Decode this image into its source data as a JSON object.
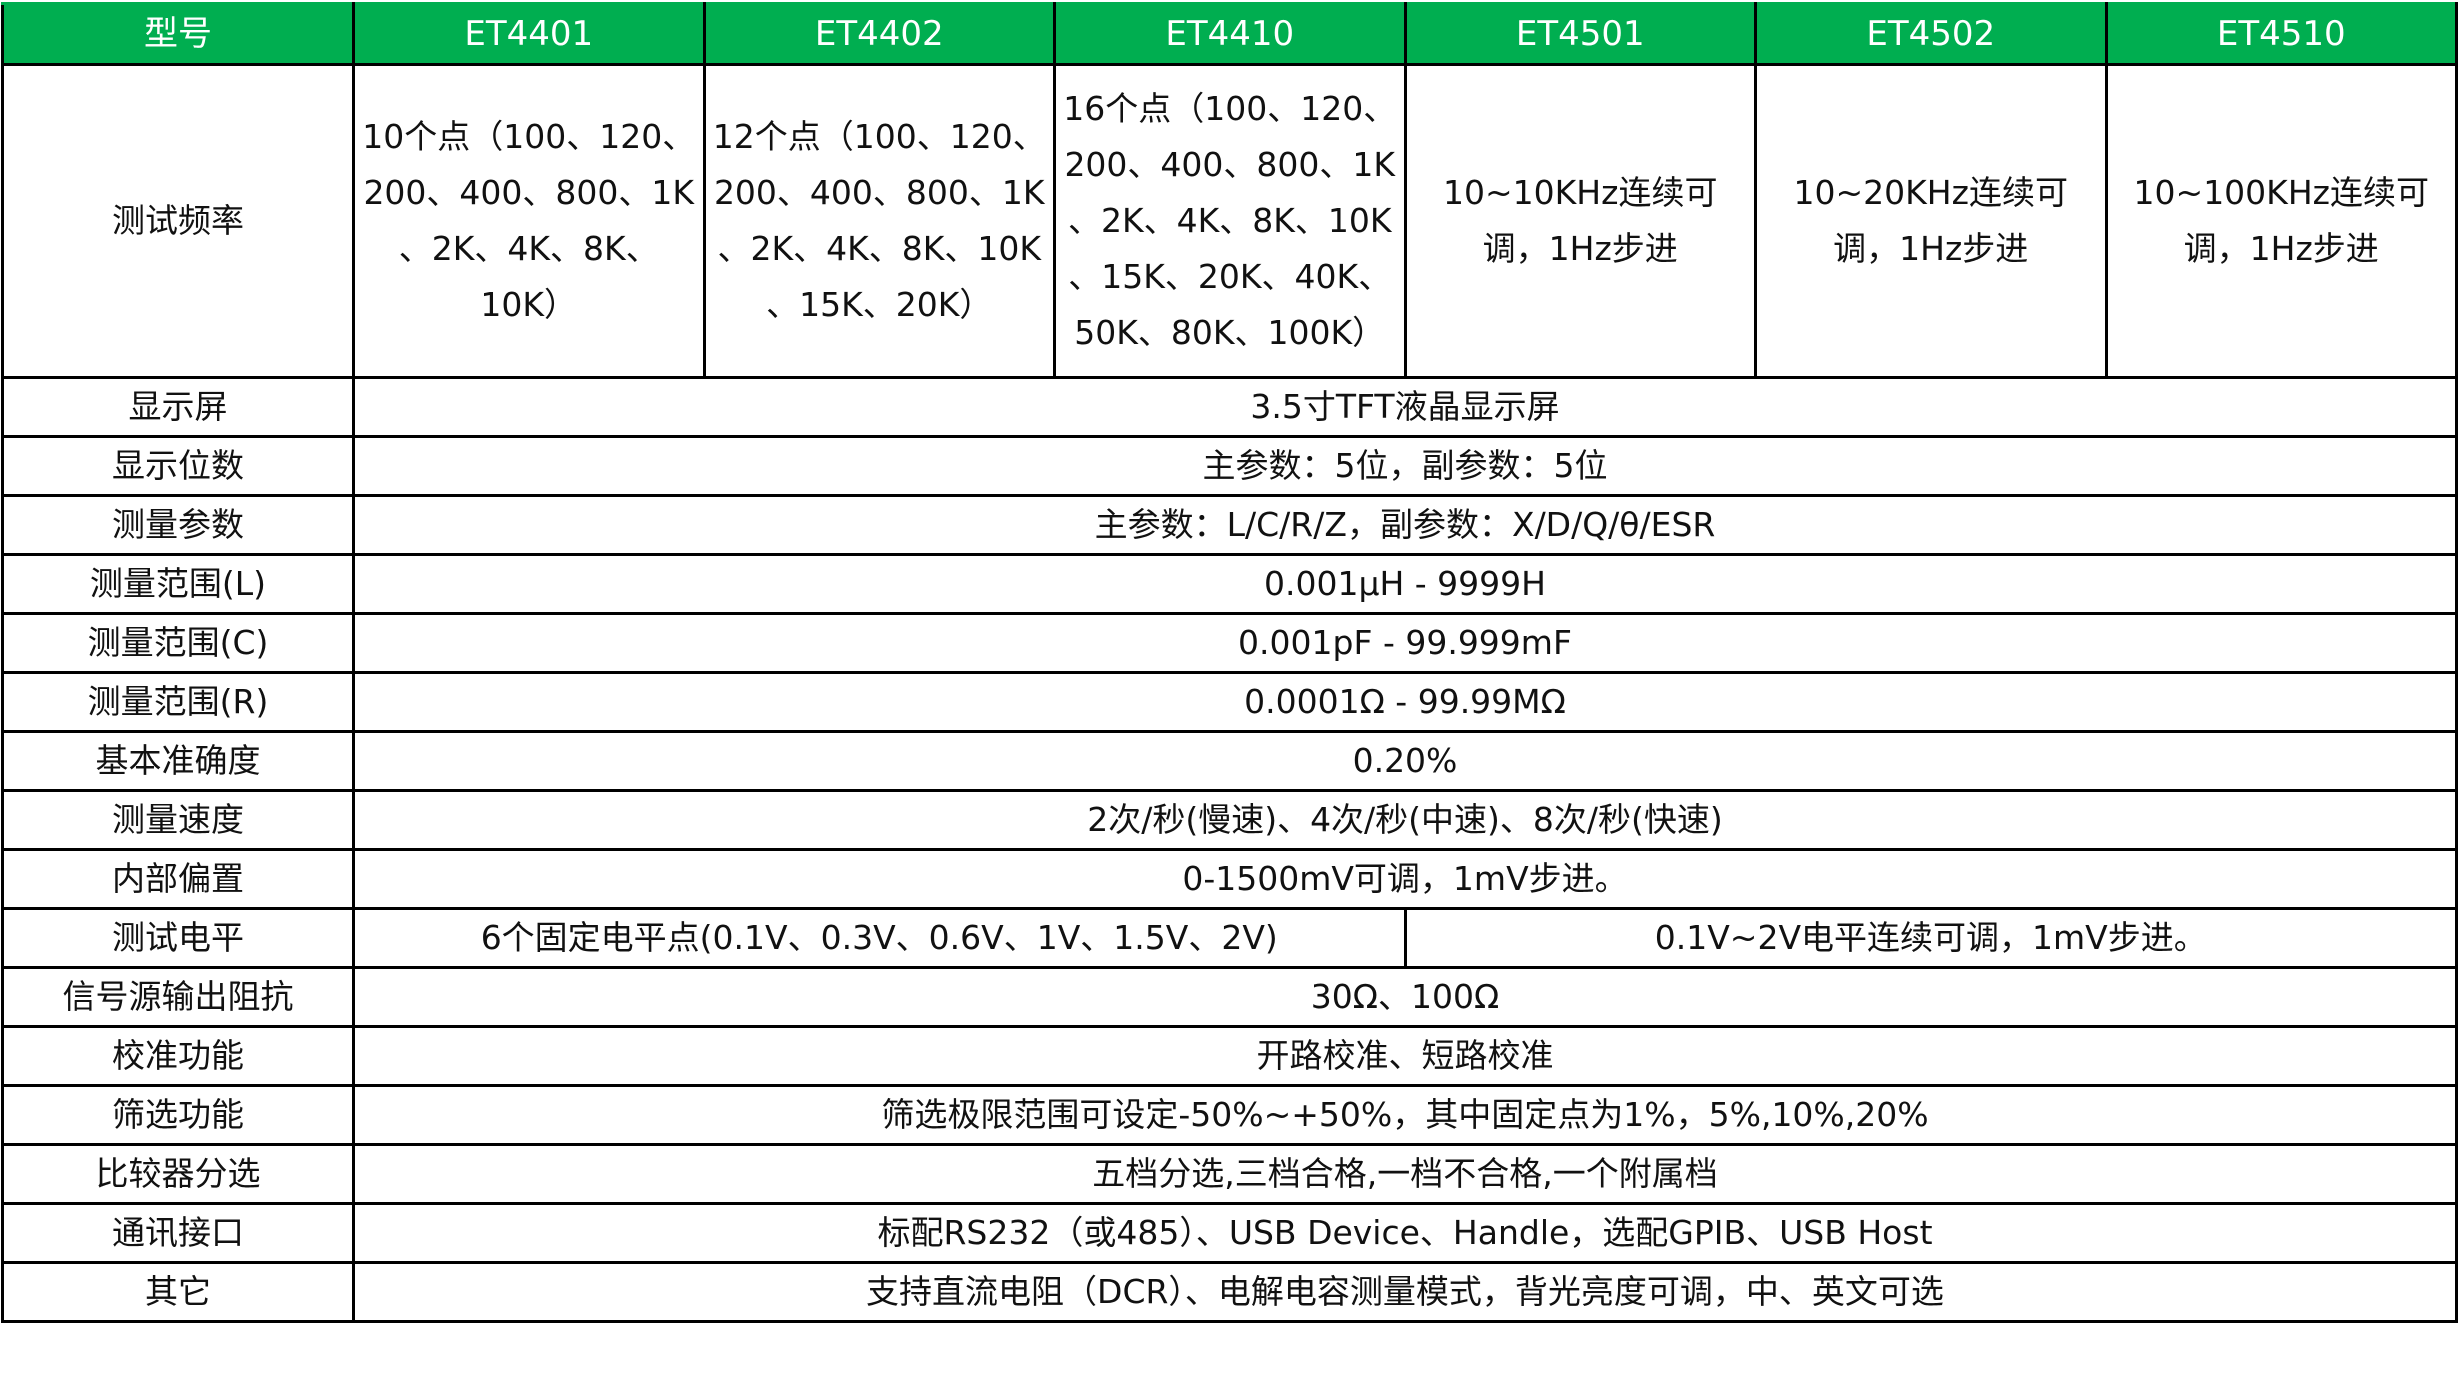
{
  "header": [
    "型号",
    "ET4401",
    "ET4402",
    "ET4410",
    "ET4501",
    "ET4502",
    "ET4510"
  ],
  "frequency": {
    "label": "测试频率",
    "cells": [
      "10个点（100、120、\n200、400、800、1K\n、2K、4K、8K、\n10K）",
      "12个点（100、120、\n200、400、800、1K\n、2K、4K、8K、10K\n、15K、20K）",
      "16个点（100、120、\n200、400、800、1K\n、2K、4K、8K、10K\n、15K、20K、40K、\n50K、80K、100K）",
      "10~10KHz连续可\n调，1Hz步进",
      "10~20KHz连续可\n调，1Hz步进",
      "10~100KHz连续可\n调，1Hz步进"
    ]
  },
  "rows": [
    {
      "label": "显示屏",
      "value": "3.5寸TFT液晶显示屏"
    },
    {
      "label": "显示位数",
      "value": "主参数：5位，副参数：5位"
    },
    {
      "label": "测量参数",
      "value": "主参数：L/C/R/Z，副参数：X/D/Q/θ/ESR"
    },
    {
      "label": "测量范围(L)",
      "value": "0.001μH - 9999H"
    },
    {
      "label": "测量范围(C)",
      "value": "0.001pF - 99.999mF"
    },
    {
      "label": "测量范围(R)",
      "value": "0.0001Ω - 99.99MΩ"
    },
    {
      "label": "基本准确度",
      "value": "0.20%"
    },
    {
      "label": "测量速度",
      "value": "2次/秒(慢速)、4次/秒(中速)、8次/秒(快速)"
    },
    {
      "label": "内部偏置",
      "value": "0-1500mV可调，1mV步进。"
    }
  ],
  "level": {
    "label": "测试电平",
    "value_44": "6个固定电平点(0.1V、0.3V、0.6V、1V、1.5V、2V)",
    "value_45": "0.1V~2V电平连续可调，1mV步进。"
  },
  "rows2": [
    {
      "label": "信号源输出阻抗",
      "value": "30Ω、100Ω"
    },
    {
      "label": "校准功能",
      "value": "开路校准、短路校准"
    },
    {
      "label": "筛选功能",
      "value": "筛选极限范围可设定-50%~+50%，其中固定点为1%，5%,10%,20%"
    },
    {
      "label": "比较器分选",
      "value": "五档分选,三档合格,一档不合格,一个附属档"
    },
    {
      "label": "通讯接口",
      "value": "标配RS232（或485）、USB Device、Handle，选配GPIB、USB Host"
    },
    {
      "label": "其它",
      "value": "支持直流电阻（DCR）、电解电容测量模式，背光亮度可调，中、英文可选"
    }
  ],
  "colors": {
    "header_bg": "#00ae50",
    "header_text": "#ffffff",
    "border": "#000000"
  }
}
